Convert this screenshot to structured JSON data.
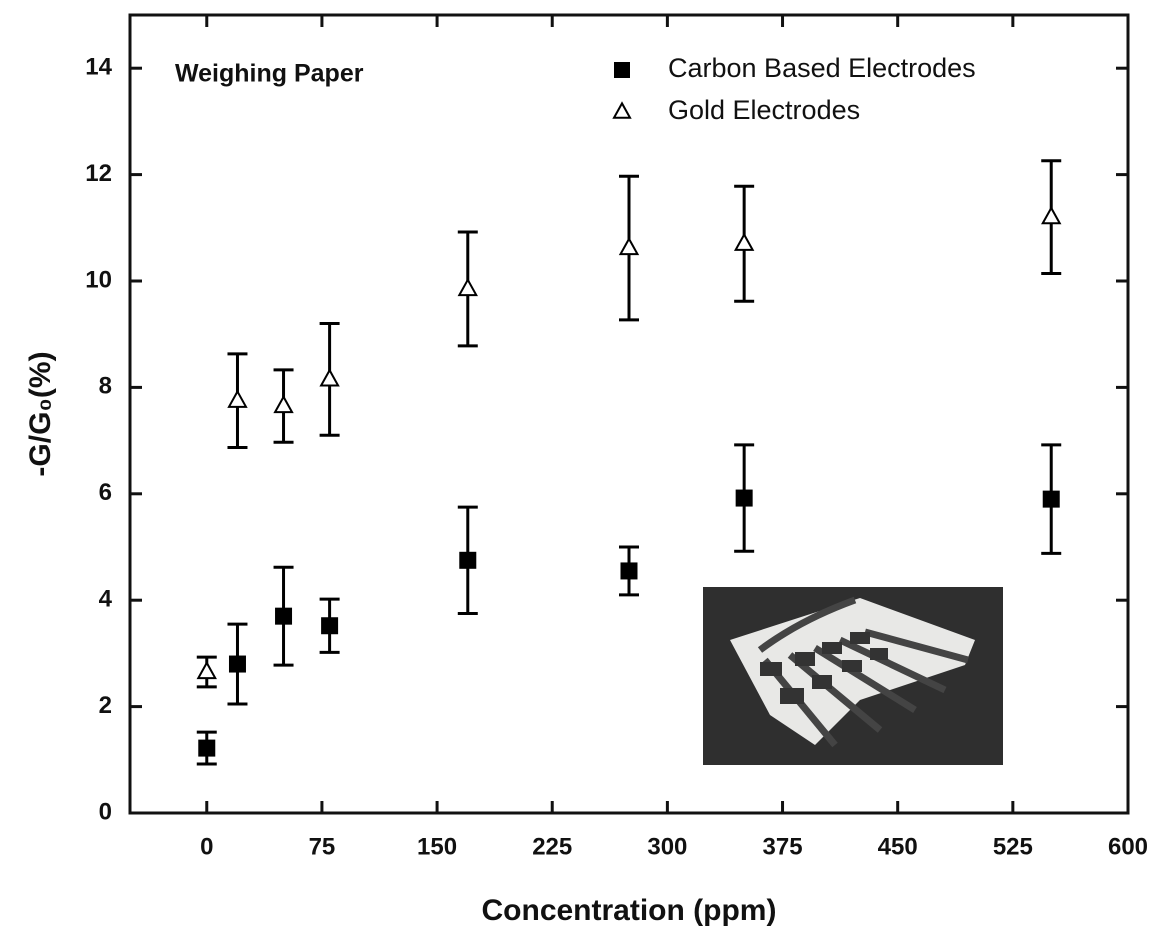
{
  "chart_data": {
    "type": "scatter",
    "annotation": "Weighing Paper",
    "x_label": "Concentration (ppm)",
    "y_label": "-G/G₀(%)",
    "xlim": [
      -50,
      600
    ],
    "xticks": [
      0,
      75,
      150,
      225,
      300,
      375,
      450,
      525,
      600
    ],
    "ylim": [
      0,
      15
    ],
    "yticks": [
      0,
      2,
      4,
      6,
      8,
      10,
      12,
      14
    ],
    "legend": "upper right",
    "series": [
      {
        "name": "Carbon Based Electrodes",
        "marker": "square",
        "color": "#000000",
        "x": [
          0,
          20,
          50,
          80,
          170,
          275,
          350,
          550
        ],
        "values": [
          1.22,
          2.8,
          3.7,
          3.52,
          4.75,
          4.55,
          5.92,
          5.9
        ],
        "errors": [
          0.3,
          0.75,
          0.92,
          0.5,
          1.0,
          0.45,
          1.0,
          1.02
        ]
      },
      {
        "name": "Gold Electrodes",
        "marker": "triangle",
        "color": "#000000",
        "x": [
          0,
          20,
          50,
          80,
          170,
          275,
          350,
          550
        ],
        "values": [
          2.65,
          7.75,
          7.65,
          8.15,
          9.85,
          10.62,
          10.7,
          11.2
        ],
        "errors": [
          0.28,
          0.88,
          0.68,
          1.05,
          1.07,
          1.35,
          1.08,
          1.06
        ]
      }
    ]
  }
}
